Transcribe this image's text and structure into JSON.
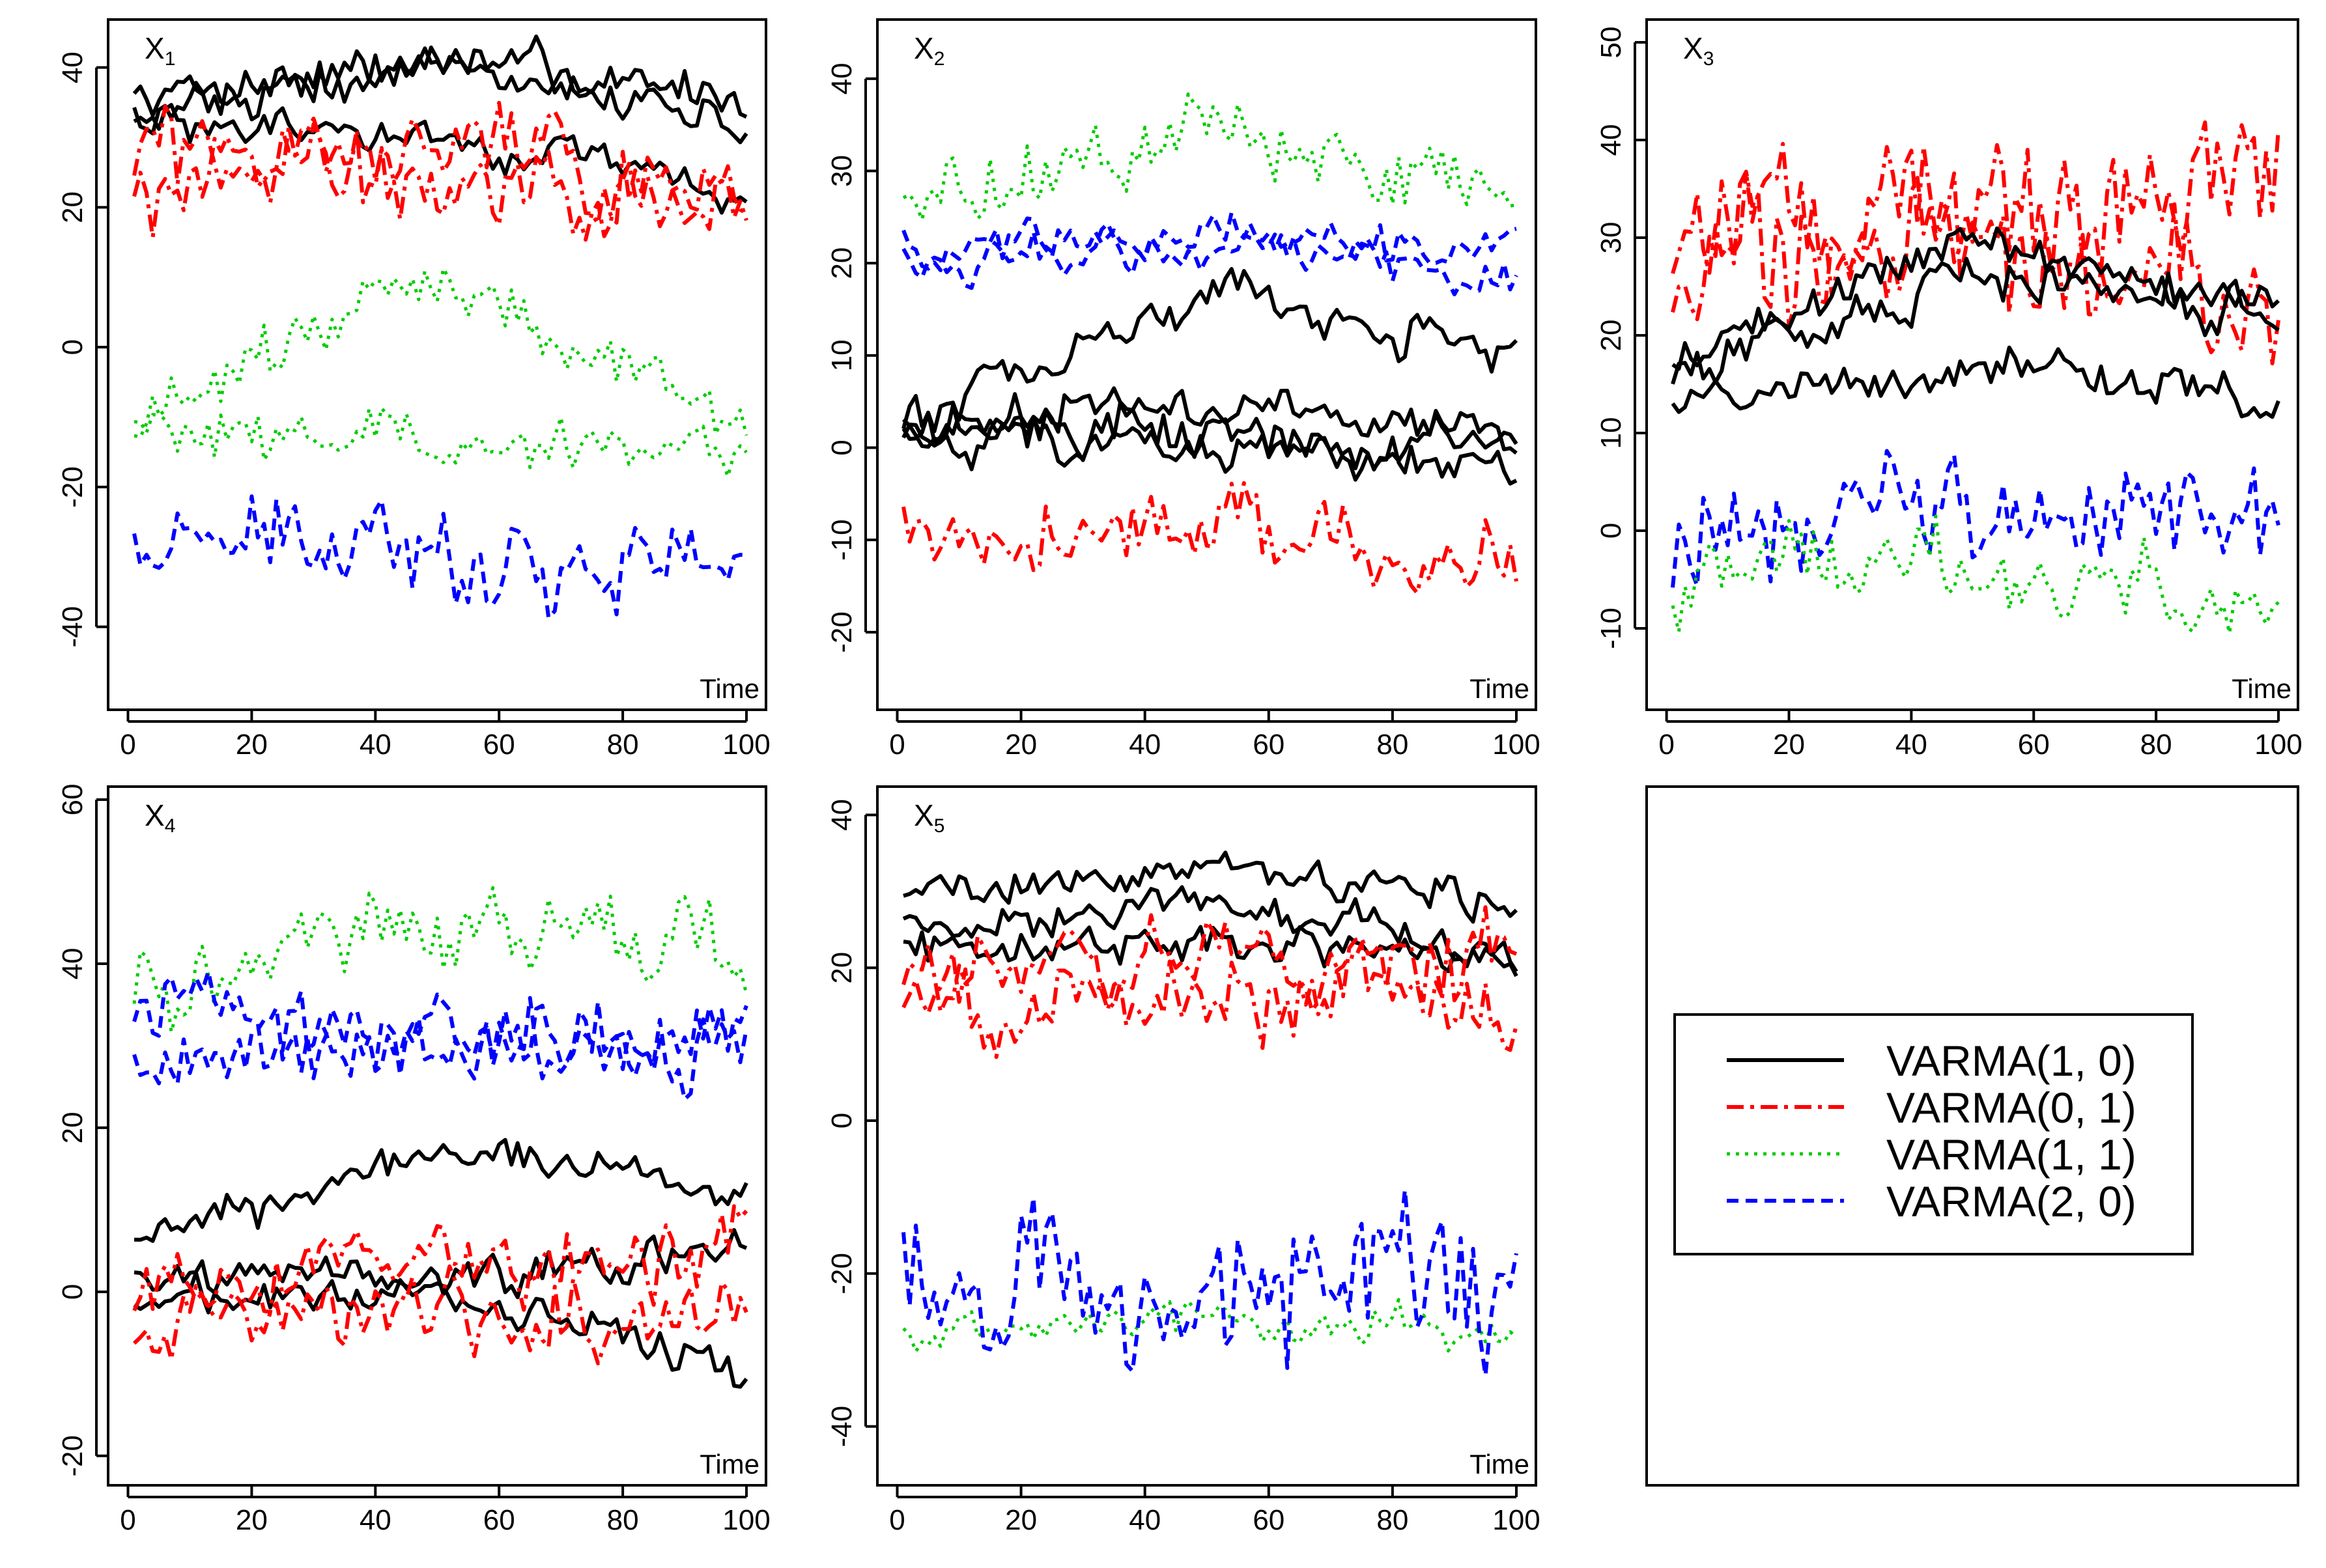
{
  "colors": {
    "VARMA(1, 0)": "#000000",
    "VARMA(0, 1)": "#ff0000",
    "VARMA(1, 1)": "#00cc00",
    "VARMA(2, 0)": "#0000ff"
  },
  "legend": {
    "entries": [
      "VARMA(1, 0)",
      "VARMA(0, 1)",
      "VARMA(1, 1)",
      "VARMA(2, 0)"
    ],
    "line_styles": [
      "solid",
      "dash-dot",
      "dotted",
      "dashed"
    ]
  },
  "chart_data": [
    {
      "type": "line",
      "panel_label": "X",
      "panel_sub": "1",
      "xlabel": "Time",
      "xlim": [
        1,
        100
      ],
      "ylim": [
        -50,
        45
      ],
      "xticks": [
        0,
        20,
        40,
        60,
        80,
        100
      ],
      "yticks": [
        -40,
        -20,
        0,
        20,
        40
      ],
      "bands": [
        {
          "series": "VARMA(1, 0)",
          "lines": 3,
          "level_start": [
            36,
            34,
            32
          ],
          "level_end": [
            36,
            33,
            22
          ],
          "level_mid": [
            41,
            40,
            30
          ],
          "amplitude": 4
        },
        {
          "series": "VARMA(0, 1)",
          "lines": 2,
          "level_start": [
            28,
            25
          ],
          "level_end": [
            22,
            20
          ],
          "level_mid": [
            28,
            25
          ],
          "amplitude": 8
        },
        {
          "series": "VARMA(1, 1)",
          "lines": 2,
          "level_start": [
            -10,
            -12
          ],
          "level_end": [
            -12,
            -15
          ],
          "level_mid": [
            10,
            -14
          ],
          "amplitude": 5
        },
        {
          "series": "VARMA(2, 0)",
          "lines": 1,
          "level_start": [
            -28
          ],
          "level_end": [
            -30
          ],
          "level_mid": [
            -30
          ],
          "amplitude": 8
        }
      ]
    },
    {
      "type": "line",
      "panel_label": "X",
      "panel_sub": "2",
      "xlabel": "Time",
      "xlim": [
        1,
        100
      ],
      "ylim": [
        -27,
        45
      ],
      "xticks": [
        0,
        20,
        40,
        60,
        80,
        100
      ],
      "yticks": [
        -20,
        -10,
        0,
        10,
        20,
        30,
        40
      ],
      "bands": [
        {
          "series": "VARMA(1, 1)",
          "lines": 1,
          "level_start": [
            26
          ],
          "level_end": [
            27
          ],
          "level_mid": [
            35
          ],
          "amplitude": 5
        },
        {
          "series": "VARMA(2, 0)",
          "lines": 2,
          "level_start": [
            20,
            22
          ],
          "level_end": [
            18,
            22
          ],
          "level_mid": [
            23,
            21
          ],
          "amplitude": 3
        },
        {
          "series": "VARMA(1, 0)",
          "lines": 4,
          "level_start": [
            2,
            3,
            2,
            1
          ],
          "level_end": [
            10,
            1,
            -3,
            0
          ],
          "level_mid": [
            17,
            4,
            2,
            0
          ],
          "amplitude": 3
        },
        {
          "series": "VARMA(0, 1)",
          "lines": 1,
          "level_start": [
            -8
          ],
          "level_end": [
            -12
          ],
          "level_mid": [
            -9
          ],
          "amplitude": 5
        }
      ]
    },
    {
      "type": "line",
      "panel_label": "X",
      "panel_sub": "3",
      "xlabel": "Time",
      "xlim": [
        1,
        100
      ],
      "ylim": [
        -17,
        51
      ],
      "xticks": [
        0,
        20,
        40,
        60,
        80,
        100
      ],
      "yticks": [
        -10,
        0,
        10,
        20,
        30,
        40,
        50
      ],
      "bands": [
        {
          "series": "VARMA(0, 1)",
          "lines": 2,
          "level_start": [
            32,
            28
          ],
          "level_end": [
            36,
            26
          ],
          "level_mid": [
            33,
            28
          ],
          "amplitude": 9
        },
        {
          "series": "VARMA(1, 0)",
          "lines": 3,
          "level_start": [
            18,
            16,
            14
          ],
          "level_end": [
            22,
            24,
            13
          ],
          "level_mid": [
            30,
            25,
            17
          ],
          "amplitude": 3
        },
        {
          "series": "VARMA(2, 0)",
          "lines": 1,
          "level_start": [
            0
          ],
          "level_end": [
            2
          ],
          "level_mid": [
            3
          ],
          "amplitude": 7
        },
        {
          "series": "VARMA(1, 1)",
          "lines": 1,
          "level_start": [
            -5
          ],
          "level_end": [
            -8
          ],
          "level_mid": [
            -3
          ],
          "amplitude": 5
        }
      ]
    },
    {
      "type": "line",
      "panel_label": "X",
      "panel_sub": "4",
      "xlabel": "Time",
      "xlim": [
        1,
        100
      ],
      "ylim": [
        -22,
        60
      ],
      "xticks": [
        0,
        20,
        40,
        60,
        80,
        100
      ],
      "yticks": [
        -20,
        0,
        20,
        40,
        60
      ],
      "bands": [
        {
          "series": "VARMA(1, 1)",
          "lines": 1,
          "level_start": [
            38
          ],
          "level_end": [
            42
          ],
          "level_mid": [
            44
          ],
          "amplitude": 6
        },
        {
          "series": "VARMA(2, 0)",
          "lines": 2,
          "level_start": [
            30,
            34
          ],
          "level_end": [
            30,
            32
          ],
          "level_mid": [
            32,
            30
          ],
          "amplitude": 6
        },
        {
          "series": "VARMA(1, 0)",
          "lines": 3,
          "level_start": [
            6,
            2,
            -2
          ],
          "level_end": [
            12,
            6,
            -10
          ],
          "level_mid": [
            18,
            2,
            0
          ],
          "amplitude": 3
        },
        {
          "series": "VARMA(0, 1)",
          "lines": 2,
          "level_start": [
            0,
            -4
          ],
          "level_end": [
            4,
            -2
          ],
          "level_mid": [
            4,
            -2
          ],
          "amplitude": 6
        }
      ]
    },
    {
      "type": "line",
      "panel_label": "X",
      "panel_sub": "5",
      "xlabel": "Time",
      "xlim": [
        1,
        100
      ],
      "ylim": [
        -46,
        42
      ],
      "xticks": [
        0,
        20,
        40,
        60,
        80,
        100
      ],
      "yticks": [
        -40,
        -20,
        0,
        20,
        40
      ],
      "bands": [
        {
          "series": "VARMA(1, 0)",
          "lines": 3,
          "level_start": [
            28,
            25,
            22
          ],
          "level_end": [
            28,
            22,
            22
          ],
          "level_mid": [
            34,
            28,
            23
          ],
          "amplitude": 3
        },
        {
          "series": "VARMA(0, 1)",
          "lines": 2,
          "level_start": [
            18,
            15
          ],
          "level_end": [
            20,
            14
          ],
          "level_mid": [
            22,
            17
          ],
          "amplitude": 7
        },
        {
          "series": "VARMA(1, 1)",
          "lines": 1,
          "level_start": [
            -28
          ],
          "level_end": [
            -28
          ],
          "level_mid": [
            -26
          ],
          "amplitude": 3
        },
        {
          "series": "VARMA(2, 0)",
          "lines": 1,
          "level_start": [
            -22
          ],
          "level_end": [
            -20
          ],
          "level_mid": [
            -22
          ],
          "amplitude": 13
        }
      ]
    }
  ]
}
